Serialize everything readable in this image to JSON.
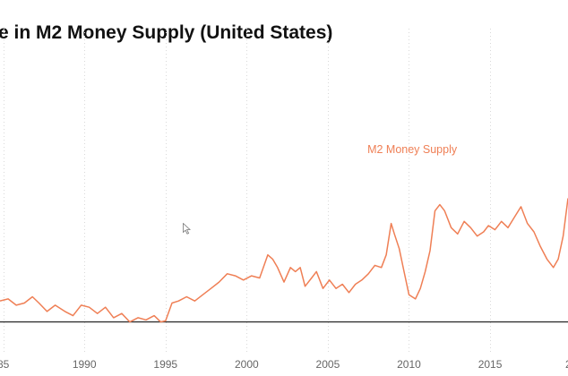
{
  "title": "e in M2 Money Supply (United States)",
  "colors": {
    "series": "#ef7f55",
    "zero_line": "#333333",
    "grid": "#d9d9d9",
    "tick_text": "#666666"
  },
  "chart_data": {
    "type": "line",
    "title": "e in M2 Money Supply (United States)",
    "xlabel": "",
    "ylabel": "",
    "grid": true,
    "xlim": [
      1984.8,
      2019.8
    ],
    "ylim": [
      -1,
      14
    ],
    "x_ticks": [
      "85",
      "1990",
      "1995",
      "2000",
      "2005",
      "2010",
      "2015",
      "20"
    ],
    "x_tick_values": [
      1985,
      1990,
      1995,
      2000,
      2005,
      2010,
      2015,
      2020
    ],
    "baseline": 0,
    "series": [
      {
        "name": "M2 Money Supply",
        "points": [
          [
            1984.8,
            1.0
          ],
          [
            1985.3,
            1.1
          ],
          [
            1985.8,
            0.8
          ],
          [
            1986.3,
            0.9
          ],
          [
            1986.8,
            1.2
          ],
          [
            1987.2,
            0.9
          ],
          [
            1987.7,
            0.5
          ],
          [
            1988.2,
            0.8
          ],
          [
            1988.8,
            0.5
          ],
          [
            1989.3,
            0.3
          ],
          [
            1989.8,
            0.8
          ],
          [
            1990.3,
            0.7
          ],
          [
            1990.8,
            0.4
          ],
          [
            1991.3,
            0.7
          ],
          [
            1991.8,
            0.2
          ],
          [
            1992.3,
            0.4
          ],
          [
            1992.8,
            0.0
          ],
          [
            1993.3,
            0.2
          ],
          [
            1993.8,
            0.1
          ],
          [
            1994.3,
            0.3
          ],
          [
            1994.7,
            0.0
          ],
          [
            1995.0,
            0.05
          ],
          [
            1995.4,
            0.9
          ],
          [
            1995.8,
            1.0
          ],
          [
            1996.3,
            1.2
          ],
          [
            1996.8,
            1.0
          ],
          [
            1997.3,
            1.3
          ],
          [
            1997.8,
            1.6
          ],
          [
            1998.3,
            1.9
          ],
          [
            1998.8,
            2.3
          ],
          [
            1999.3,
            2.2
          ],
          [
            1999.8,
            2.0
          ],
          [
            2000.3,
            2.2
          ],
          [
            2000.8,
            2.1
          ],
          [
            2001.3,
            3.2
          ],
          [
            2001.6,
            3.0
          ],
          [
            2001.9,
            2.6
          ],
          [
            2002.3,
            1.9
          ],
          [
            2002.7,
            2.6
          ],
          [
            2003.0,
            2.4
          ],
          [
            2003.3,
            2.6
          ],
          [
            2003.6,
            1.7
          ],
          [
            2004.0,
            2.1
          ],
          [
            2004.3,
            2.4
          ],
          [
            2004.7,
            1.6
          ],
          [
            2005.1,
            2.0
          ],
          [
            2005.5,
            1.6
          ],
          [
            2005.9,
            1.8
          ],
          [
            2006.3,
            1.4
          ],
          [
            2006.7,
            1.8
          ],
          [
            2007.1,
            2.0
          ],
          [
            2007.5,
            2.3
          ],
          [
            2007.9,
            2.7
          ],
          [
            2008.3,
            2.6
          ],
          [
            2008.6,
            3.2
          ],
          [
            2008.9,
            4.7
          ],
          [
            2009.1,
            4.2
          ],
          [
            2009.4,
            3.5
          ],
          [
            2009.7,
            2.4
          ],
          [
            2010.0,
            1.3
          ],
          [
            2010.4,
            1.1
          ],
          [
            2010.7,
            1.6
          ],
          [
            2011.0,
            2.4
          ],
          [
            2011.3,
            3.4
          ],
          [
            2011.6,
            5.3
          ],
          [
            2011.9,
            5.6
          ],
          [
            2012.2,
            5.3
          ],
          [
            2012.6,
            4.5
          ],
          [
            2013.0,
            4.2
          ],
          [
            2013.4,
            4.8
          ],
          [
            2013.8,
            4.5
          ],
          [
            2014.2,
            4.1
          ],
          [
            2014.6,
            4.3
          ],
          [
            2014.9,
            4.6
          ],
          [
            2015.3,
            4.4
          ],
          [
            2015.7,
            4.8
          ],
          [
            2016.1,
            4.5
          ],
          [
            2016.5,
            5.0
          ],
          [
            2016.9,
            5.5
          ],
          [
            2017.3,
            4.7
          ],
          [
            2017.7,
            4.3
          ],
          [
            2018.1,
            3.6
          ],
          [
            2018.5,
            3.0
          ],
          [
            2018.9,
            2.6
          ],
          [
            2019.2,
            3.0
          ],
          [
            2019.5,
            4.1
          ],
          [
            2019.8,
            5.9
          ]
        ]
      }
    ],
    "annotations": [
      {
        "text": "M2 Money Supply",
        "x": 2010.2,
        "y": 8.05
      }
    ]
  }
}
